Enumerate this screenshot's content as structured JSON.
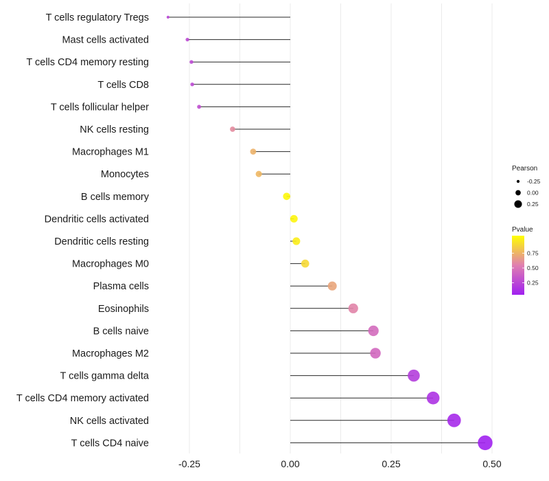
{
  "chart_data": {
    "type": "lollipop",
    "title": "",
    "xlabel": "",
    "ylabel": "",
    "xlim": [
      -0.32,
      0.52
    ],
    "x_ticks": [
      -0.25,
      0.0,
      0.25,
      0.5
    ],
    "x_tick_labels": [
      "-0.25",
      "0.00",
      "0.25",
      "0.50"
    ],
    "grid": true,
    "categories": [
      "T cells regulatory  Tregs",
      "Mast cells activated",
      "T cells CD4 memory resting",
      "T cells CD8",
      "T cells follicular helper",
      "NK cells resting",
      "Macrophages M1",
      "Monocytes",
      "B cells memory",
      "Dendritic cells activated",
      "Dendritic cells resting",
      "Macrophages M0",
      "Plasma cells",
      "Eosinophils",
      "B cells naive",
      "Macrophages M2",
      "T cells gamma delta",
      "T cells CD4 memory activated",
      "NK cells activated",
      "T cells CD4 naive"
    ],
    "series": [
      {
        "name": "Pearson",
        "values": [
          -0.303,
          -0.255,
          -0.245,
          -0.243,
          -0.226,
          -0.143,
          -0.092,
          -0.078,
          -0.009,
          0.009,
          0.015,
          0.037,
          0.104,
          0.156,
          0.206,
          0.211,
          0.306,
          0.354,
          0.406,
          0.483
        ]
      },
      {
        "name": "Pvalue",
        "values": [
          0.2,
          0.22,
          0.22,
          0.22,
          0.25,
          0.55,
          0.7,
          0.72,
          0.97,
          0.96,
          0.93,
          0.85,
          0.65,
          0.52,
          0.4,
          0.38,
          0.16,
          0.1,
          0.05,
          0.01
        ]
      }
    ],
    "legend": {
      "position": "right",
      "size_title": "Pearson",
      "size_breaks": [
        -0.25,
        0.0,
        0.25
      ],
      "size_labels": [
        "-0.25",
        "0.00",
        "0.25"
      ],
      "color_title": "Pvalue",
      "color_breaks": [
        0.25,
        0.5,
        0.75
      ],
      "color_labels": [
        "0.25",
        "0.50",
        "0.75"
      ],
      "color_low": "#a020f0",
      "color_mid": "#e07fb0",
      "color_high": "#ffff00",
      "color_range": [
        0.0,
        1.0
      ]
    },
    "segment_color": "#000000"
  }
}
